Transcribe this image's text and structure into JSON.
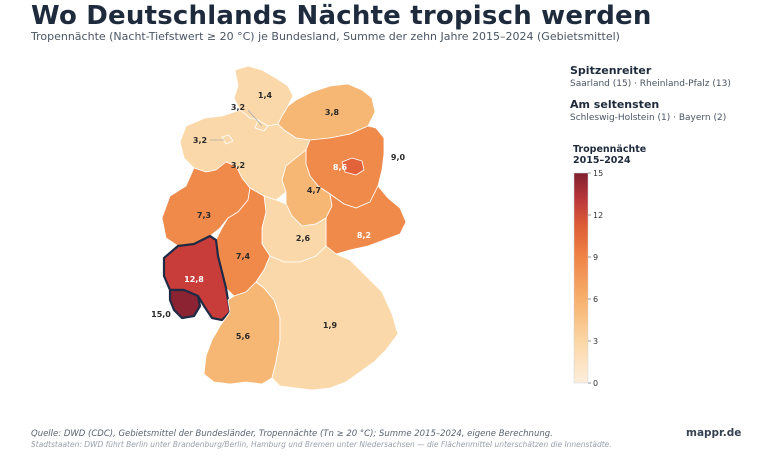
{
  "header": {
    "title": "Wo Deutschlands Nächte tropisch werden",
    "subtitle": "Tropennächte (Nacht-Tiefstwert ≥ 20 °C) je Bundesland, Summe der zehn Jahre 2015–2024 (Gebietsmittel)"
  },
  "sidebar": {
    "top_heading": "Spitzenreiter",
    "top_text": "Saarland (15) · Rheinland-Pfalz (13)",
    "low_heading": "Am seltensten",
    "low_text": "Schleswig-Holstein (1) · Bayern (2)"
  },
  "legend": {
    "title_line1": "Tropennächte",
    "title_line2": "2015–2024",
    "ticks": [
      "15",
      "12",
      "9",
      "6",
      "3",
      "0"
    ],
    "min": 0,
    "max": 15
  },
  "colors": {
    "scale": [
      "#fde9cf",
      "#fbd8a9",
      "#f7b774",
      "#f08a4b",
      "#e2623a",
      "#c83d3a",
      "#8b2333"
    ],
    "highlight_border": "#1f2a44",
    "region_border": "#ffffff"
  },
  "regions": [
    {
      "id": "schleswig-holstein",
      "label": "1,4",
      "value": 1.4
    },
    {
      "id": "hamburg",
      "label": "3,2",
      "value": 3.2
    },
    {
      "id": "mecklenburg-vorpommern",
      "label": "3,8",
      "value": 3.8
    },
    {
      "id": "bremen",
      "label": "3,2",
      "value": 3.2
    },
    {
      "id": "niedersachsen",
      "label": "3,2",
      "value": 3.2
    },
    {
      "id": "brandenburg",
      "label": "8,6",
      "value": 8.6
    },
    {
      "id": "berlin",
      "label": "9,0",
      "value": 9.0
    },
    {
      "id": "sachsen-anhalt",
      "label": "4,7",
      "value": 4.7
    },
    {
      "id": "nordrhein-westfalen",
      "label": "7,3",
      "value": 7.3
    },
    {
      "id": "sachsen",
      "label": "8,2",
      "value": 8.2
    },
    {
      "id": "thueringen",
      "label": "2,6",
      "value": 2.6
    },
    {
      "id": "hessen",
      "label": "7,4",
      "value": 7.4
    },
    {
      "id": "rheinland-pfalz",
      "label": "12,8",
      "value": 12.8
    },
    {
      "id": "saarland",
      "label": "15,0",
      "value": 15.0
    },
    {
      "id": "baden-wuerttemberg",
      "label": "5,6",
      "value": 5.6
    },
    {
      "id": "bayern",
      "label": "1,9",
      "value": 1.9
    }
  ],
  "footer": {
    "source": "Quelle: DWD (CDC), Gebietsmittel der Bundesländer, Tropennächte (Tn ≥ 20 °C); Summe 2015–2024, eigene Berechnung.",
    "note": "Stadtstaaten: DWD führt Berlin unter Brandenburg/Berlin, Hamburg und Bremen unter Niedersachsen — die Flächenmittel unterschätzen die Innenstädte.",
    "brand": "mappr.de"
  }
}
